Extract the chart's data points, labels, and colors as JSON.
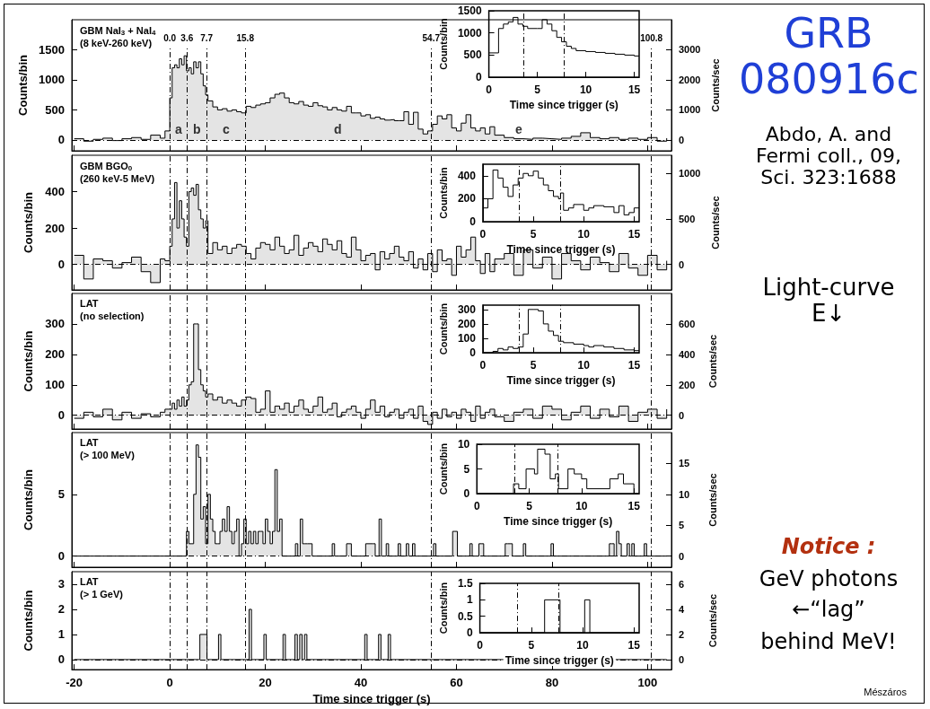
{
  "chart_data": [
    {
      "type": "step",
      "title": "GBM NaI$_{3}$ + NaI$_{4}$",
      "subtitle": "(8 keV-260 keV)",
      "ylabel": "Counts/bin",
      "y2label": "Counts/sec",
      "color": "#000000",
      "x": [
        -20,
        -18,
        -16,
        -14,
        -12,
        -10,
        -8,
        -6,
        -4,
        -2,
        -1,
        0,
        0.5,
        1,
        1.5,
        2,
        2.5,
        3,
        3.5,
        4,
        4.5,
        5,
        5.5,
        6,
        6.5,
        7,
        7.5,
        8,
        9,
        10,
        11,
        12,
        13,
        14,
        15,
        16,
        17,
        18,
        19,
        20,
        21,
        22,
        23,
        24,
        25,
        26,
        27,
        28,
        29,
        30,
        31,
        32,
        33,
        34,
        35,
        36,
        37,
        38,
        39,
        40,
        41,
        42,
        43,
        44,
        45,
        46,
        47,
        48,
        49,
        50,
        51,
        52,
        53,
        54,
        55,
        56,
        57,
        58,
        59,
        60,
        61,
        62,
        63,
        64,
        65,
        66,
        67,
        68,
        70,
        72,
        74,
        76,
        78,
        80,
        82,
        84,
        86,
        88,
        90,
        92,
        94,
        96,
        98,
        100,
        102,
        104
      ],
      "values": [
        20,
        -20,
        10,
        30,
        -10,
        20,
        40,
        10,
        80,
        30,
        150,
        700,
        1200,
        1250,
        1200,
        1350,
        1250,
        1400,
        1150,
        1200,
        1100,
        1300,
        1200,
        1300,
        1100,
        900,
        750,
        650,
        550,
        500,
        520,
        480,
        500,
        470,
        450,
        560,
        540,
        580,
        600,
        620,
        700,
        760,
        780,
        700,
        620,
        600,
        640,
        580,
        560,
        620,
        570,
        550,
        500,
        540,
        500,
        480,
        560,
        450,
        450,
        400,
        420,
        360,
        380,
        350,
        330,
        340,
        320,
        320,
        470,
        260,
        460,
        180,
        100,
        150,
        260,
        400,
        350,
        420,
        200,
        150,
        280,
        420,
        200,
        150,
        200,
        100,
        220,
        80,
        40,
        20,
        10,
        30,
        20,
        10,
        30,
        60,
        120,
        40,
        20,
        40,
        10,
        30,
        10,
        40,
        -20,
        30
      ],
      "xlim": [
        -20.5,
        105
      ],
      "xticks": [
        -20,
        0,
        20,
        40,
        60,
        80,
        100
      ],
      "ylim": [
        -180,
        2000
      ],
      "yticks": [
        0,
        500,
        1000,
        1500
      ],
      "y2lim": [
        -360,
        4000
      ],
      "y2ticks": [
        0,
        1000,
        2000,
        3000
      ],
      "tick_labels": "y",
      "ref_lines": [
        {
          "axis": "x",
          "value": 0,
          "label": "0.0",
          "line_style": "dashed"
        },
        {
          "axis": "x",
          "value": 3.6,
          "label": "3.6",
          "line_style": "dashed"
        },
        {
          "axis": "x",
          "value": 7.7,
          "label": "7.7",
          "line_style": "dashed"
        },
        {
          "axis": "x",
          "value": 15.8,
          "label": "15.8",
          "line_style": "dashed"
        },
        {
          "axis": "x",
          "value": 54.7,
          "label": "54.7",
          "line_style": "dashed"
        },
        {
          "axis": "x",
          "value": 100.8,
          "label": "100.8",
          "line_style": "dashed"
        },
        {
          "axis": "y",
          "value": 0,
          "line_style": "dashed"
        }
      ],
      "annotations": [
        "a",
        "b",
        "c",
        "d",
        "e"
      ]
    },
    {
      "type": "step",
      "xlabel": "Time since trigger (s)",
      "ylabel": "Counts/bin",
      "color": "#000000",
      "x": [
        0,
        1,
        1.5,
        2,
        2.5,
        3,
        3.5,
        4,
        5,
        5.5,
        6,
        6.5,
        7,
        7.5,
        8,
        8.5,
        9,
        10,
        11,
        12,
        13,
        14,
        15,
        15.5
      ],
      "values": [
        550,
        1100,
        1200,
        1250,
        1350,
        1200,
        1150,
        1100,
        1100,
        1300,
        1200,
        1050,
        900,
        800,
        700,
        650,
        600,
        580,
        560,
        540,
        520,
        500,
        480,
        480
      ],
      "xlim": [
        0,
        15.5
      ],
      "xticks": [
        0,
        5,
        10,
        15
      ],
      "ylim": [
        0,
        1500
      ],
      "yticks": [
        0,
        500,
        1000,
        1500
      ],
      "ref_lines": [
        {
          "axis": "x",
          "value": 3.6,
          "line_style": "dashed"
        },
        {
          "axis": "x",
          "value": 7.7,
          "line_style": "dashed"
        }
      ]
    },
    {
      "type": "step",
      "title": "GBM BGO$_{0}$",
      "subtitle": "(260 keV-5 MeV)",
      "ylabel": "Counts/bin",
      "y2label": "Counts/sec",
      "color": "#000000",
      "x": [
        -20,
        -18,
        -16,
        -14,
        -12,
        -10,
        -8,
        -6,
        -4,
        -2,
        -1,
        0,
        0.5,
        1,
        1.5,
        2,
        2.5,
        3,
        3.5,
        4,
        4.5,
        5,
        5.5,
        6,
        6.5,
        7,
        7.5,
        8,
        9,
        10,
        11,
        12,
        13,
        14,
        15,
        16,
        17,
        18,
        19,
        20,
        21,
        22,
        23,
        24,
        25,
        26,
        27,
        28,
        29,
        30,
        31,
        32,
        33,
        34,
        35,
        36,
        37,
        38,
        39,
        40,
        41,
        42,
        43,
        44,
        45,
        46,
        47,
        48,
        49,
        50,
        51,
        52,
        53,
        54,
        55,
        56,
        57,
        58,
        59,
        60,
        61,
        62,
        63,
        64,
        65,
        66,
        67,
        68,
        70,
        72,
        74,
        76,
        78,
        80,
        82,
        84,
        86,
        88,
        90,
        92,
        94,
        96,
        98,
        100,
        102,
        104
      ],
      "values": [
        50,
        -80,
        30,
        20,
        -20,
        10,
        40,
        -40,
        -100,
        30,
        20,
        100,
        250,
        450,
        200,
        350,
        250,
        150,
        100,
        400,
        420,
        380,
        440,
        300,
        250,
        200,
        240,
        60,
        120,
        80,
        100,
        60,
        90,
        110,
        100,
        60,
        30,
        90,
        120,
        110,
        80,
        150,
        100,
        60,
        80,
        160,
        50,
        90,
        120,
        100,
        70,
        140,
        110,
        80,
        130,
        60,
        40,
        150,
        80,
        20,
        50,
        60,
        -30,
        70,
        30,
        60,
        100,
        40,
        20,
        70,
        -20,
        30,
        -30,
        60,
        -40,
        80,
        20,
        30,
        -60,
        100,
        40,
        80,
        150,
        20,
        -50,
        60,
        -40,
        30,
        60,
        -60,
        80,
        -20,
        40,
        -80,
        60,
        20,
        -30,
        40,
        10,
        -40,
        60,
        -20,
        -60,
        50,
        -30,
        20
      ],
      "xlim": [
        -20.5,
        105
      ],
      "xticks": [
        -20,
        0,
        20,
        40,
        60,
        80,
        100
      ],
      "ylim": [
        -140,
        600
      ],
      "yticks": [
        0,
        200,
        400
      ],
      "y2lim": [
        -280,
        1200
      ],
      "y2ticks": [
        0,
        500,
        1000
      ],
      "tick_labels": "y",
      "ref_lines": [
        {
          "axis": "x",
          "value": 0,
          "line_style": "dashed"
        },
        {
          "axis": "x",
          "value": 3.6,
          "line_style": "dashed"
        },
        {
          "axis": "x",
          "value": 7.7,
          "line_style": "dashed"
        },
        {
          "axis": "x",
          "value": 15.8,
          "line_style": "dashed"
        },
        {
          "axis": "x",
          "value": 54.7,
          "line_style": "dashed"
        },
        {
          "axis": "x",
          "value": 100.8,
          "line_style": "dashed"
        },
        {
          "axis": "y",
          "value": 0,
          "line_style": "dashed"
        }
      ]
    },
    {
      "type": "step",
      "xlabel": "Time since trigger (s)",
      "ylabel": "Counts/bin",
      "color": "#000000",
      "x": [
        0,
        0.5,
        1,
        1.5,
        2,
        2.5,
        3,
        3.5,
        4,
        4.5,
        5,
        5.5,
        6,
        6.5,
        7,
        7.5,
        7.7,
        8,
        8.5,
        9,
        10,
        10.5,
        11,
        12,
        13,
        13.5,
        14,
        14.5,
        15,
        15.5
      ],
      "values": [
        120,
        200,
        450,
        380,
        300,
        220,
        320,
        380,
        420,
        400,
        440,
        380,
        320,
        270,
        220,
        200,
        250,
        100,
        120,
        150,
        100,
        120,
        140,
        130,
        80,
        140,
        60,
        80,
        120,
        120
      ],
      "xlim": [
        0,
        15.5
      ],
      "xticks": [
        0,
        5,
        10,
        15
      ],
      "ylim": [
        0,
        500
      ],
      "yticks": [
        0,
        200,
        400
      ],
      "ref_lines": [
        {
          "axis": "x",
          "value": 3.6,
          "line_style": "dashed"
        },
        {
          "axis": "x",
          "value": 7.7,
          "line_style": "dashed"
        }
      ]
    },
    {
      "type": "step",
      "title": "LAT",
      "subtitle": "(no selection)",
      "ylabel": "Counts/bin",
      "y2label": "Counts/sec",
      "color": "#000000",
      "x": [
        -20,
        -18,
        -16,
        -14,
        -12,
        -10,
        -8,
        -6,
        -4,
        -2,
        -1,
        0,
        0.5,
        1,
        1.5,
        2,
        2.5,
        3,
        3.5,
        4,
        4.5,
        5,
        5.5,
        6,
        6.5,
        7,
        7.5,
        8,
        9,
        10,
        11,
        12,
        13,
        14,
        15,
        16,
        17,
        18,
        19,
        20,
        21,
        22,
        23,
        24,
        25,
        26,
        27,
        28,
        29,
        30,
        31,
        32,
        33,
        34,
        35,
        36,
        37,
        38,
        39,
        40,
        41,
        42,
        43,
        44,
        45,
        46,
        47,
        48,
        49,
        50,
        51,
        52,
        53,
        54,
        55,
        56,
        57,
        58,
        59,
        60,
        61,
        62,
        63,
        64,
        65,
        66,
        67,
        68,
        70,
        72,
        74,
        76,
        78,
        80,
        82,
        84,
        86,
        88,
        90,
        92,
        94,
        96,
        98,
        100,
        102,
        104
      ],
      "values": [
        -10,
        10,
        -5,
        20,
        -15,
        10,
        -10,
        5,
        -5,
        10,
        20,
        20,
        40,
        20,
        50,
        30,
        60,
        30,
        50,
        100,
        110,
        300,
        300,
        150,
        100,
        80,
        60,
        70,
        50,
        60,
        40,
        50,
        40,
        30,
        50,
        60,
        55,
        10,
        20,
        80,
        10,
        30,
        20,
        40,
        10,
        30,
        50,
        20,
        10,
        30,
        60,
        10,
        20,
        40,
        -5,
        10,
        20,
        30,
        10,
        -10,
        20,
        50,
        10,
        30,
        -5,
        10,
        20,
        -10,
        10,
        20,
        -10,
        30,
        -20,
        -30,
        10,
        -10,
        20,
        -5,
        10,
        -10,
        20,
        10,
        -20,
        30,
        -10,
        10,
        20,
        -5,
        -20,
        10,
        20,
        -10,
        30,
        20,
        -15,
        10,
        30,
        -10,
        20,
        -5,
        30,
        -20,
        10,
        20,
        -10,
        20
      ],
      "xlim": [
        -20.5,
        105
      ],
      "xticks": [
        -20,
        0,
        20,
        40,
        60,
        80,
        100
      ],
      "ylim": [
        -45,
        400
      ],
      "yticks": [
        0,
        100,
        200,
        300
      ],
      "y2lim": [
        -90,
        800
      ],
      "y2ticks": [
        0,
        200,
        400,
        600
      ],
      "tick_labels": "y",
      "ref_lines": [
        {
          "axis": "x",
          "value": 0,
          "line_style": "dashed"
        },
        {
          "axis": "x",
          "value": 3.6,
          "line_style": "dashed"
        },
        {
          "axis": "x",
          "value": 7.7,
          "line_style": "dashed"
        },
        {
          "axis": "x",
          "value": 15.8,
          "line_style": "dashed"
        },
        {
          "axis": "x",
          "value": 54.7,
          "line_style": "dashed"
        },
        {
          "axis": "x",
          "value": 100.8,
          "line_style": "dashed"
        },
        {
          "axis": "y",
          "value": 0,
          "line_style": "dashed"
        }
      ]
    },
    {
      "type": "step",
      "xlabel": "Time since trigger (s)",
      "ylabel": "Counts/bin",
      "color": "#000000",
      "x": [
        0,
        1,
        1.5,
        2,
        2.5,
        3,
        3.5,
        4,
        4.5,
        5,
        5.5,
        6,
        6.5,
        7,
        7.5,
        8,
        9,
        10,
        10.5,
        11,
        12,
        13,
        14,
        15,
        15.5
      ],
      "values": [
        0,
        10,
        30,
        20,
        40,
        30,
        40,
        130,
        300,
        300,
        290,
        200,
        150,
        120,
        80,
        70,
        60,
        50,
        40,
        50,
        40,
        30,
        20,
        15,
        15
      ],
      "xlim": [
        0,
        15.5
      ],
      "xticks": [
        0,
        5,
        10,
        15
      ],
      "ylim": [
        0,
        330
      ],
      "yticks": [
        0,
        100,
        200,
        300
      ],
      "ref_lines": [
        {
          "axis": "x",
          "value": 3.6,
          "line_style": "dashed"
        },
        {
          "axis": "x",
          "value": 7.7,
          "line_style": "dashed"
        }
      ]
    },
    {
      "type": "step",
      "title": "LAT",
      "subtitle": "(> 100 MeV)",
      "ylabel": "Counts/bin",
      "y2label": "Counts/sec",
      "color": "#000000",
      "x": [
        -20,
        3.5,
        4,
        4.5,
        5,
        5.5,
        6,
        6.5,
        7,
        7.5,
        8,
        8.5,
        9,
        9.5,
        10,
        10.5,
        11,
        11.5,
        12,
        12.5,
        13,
        13.5,
        14,
        14.5,
        15,
        15.5,
        16,
        16.5,
        17,
        17.5,
        18,
        18.5,
        19,
        19.5,
        20,
        20.5,
        21,
        21.5,
        22,
        22.5,
        23,
        23.5,
        26.3,
        26.8,
        27.3,
        27.8,
        28.3,
        28.8,
        29.3,
        29.8,
        34,
        34.5,
        37,
        38,
        41,
        41.5,
        42.5,
        43,
        43.8,
        44.3,
        45.3,
        45.8,
        47.8,
        48.3,
        49.5,
        50,
        50.8,
        51.3,
        55.2,
        55.7,
        59.2,
        59.7,
        60.2,
        62.8,
        63.3,
        64.7,
        65.2,
        65.7,
        70.2,
        70.7,
        71.2,
        71.7,
        74,
        74.5,
        79.8,
        80.3,
        92,
        92.5,
        93,
        93.5,
        94,
        94.5,
        95.7,
        96.2,
        96.7,
        97.2,
        99.3,
        99.8,
        104
      ],
      "values": [
        0,
        2,
        1,
        1,
        5,
        9,
        8,
        3,
        4,
        1,
        5,
        3,
        2,
        1,
        1,
        2,
        3,
        2,
        4,
        2,
        1,
        2,
        3,
        0,
        1,
        3,
        1,
        2,
        1,
        2,
        1,
        2,
        2,
        1,
        3,
        2,
        1,
        2,
        7,
        2,
        3,
        0,
        1,
        0,
        3,
        1,
        1,
        1,
        1,
        0,
        1,
        0,
        1,
        0,
        1,
        1,
        1,
        0,
        3,
        0,
        1,
        0,
        1,
        0,
        1,
        0,
        1,
        0,
        1,
        0,
        2,
        2,
        0,
        1,
        0,
        1,
        1,
        0,
        1,
        1,
        1,
        0,
        1,
        0,
        1,
        0,
        1,
        1,
        0,
        2,
        1,
        0,
        1,
        0,
        1,
        0,
        1,
        0,
        0
      ],
      "xlim": [
        -20.5,
        105
      ],
      "xticks": [
        -20,
        0,
        20,
        40,
        60,
        80,
        100
      ],
      "ylim": [
        -0.9,
        10
      ],
      "yticks": [
        0,
        5
      ],
      "y2lim": [
        -1.8,
        20
      ],
      "y2ticks": [
        0,
        5,
        10,
        15
      ],
      "tick_labels": "y",
      "ref_lines": [
        {
          "axis": "x",
          "value": 0,
          "line_style": "dashed"
        },
        {
          "axis": "x",
          "value": 3.6,
          "line_style": "dashed"
        },
        {
          "axis": "x",
          "value": 7.7,
          "line_style": "dashed"
        },
        {
          "axis": "x",
          "value": 15.8,
          "line_style": "dashed"
        },
        {
          "axis": "x",
          "value": 54.7,
          "line_style": "dashed"
        },
        {
          "axis": "x",
          "value": 100.8,
          "line_style": "dashed"
        },
        {
          "axis": "y",
          "value": 0,
          "line_style": "dashed"
        }
      ]
    },
    {
      "type": "step",
      "xlabel": "Time since trigger (s)",
      "ylabel": "Counts/bin",
      "color": "#000000",
      "x": [
        0,
        3.5,
        4,
        4.7,
        5.5,
        5.8,
        6.5,
        7,
        7.5,
        7.8,
        8.7,
        9.3,
        10,
        10.5,
        12.7,
        13.5,
        14,
        15,
        15.5
      ],
      "values": [
        0,
        2,
        1,
        5,
        4,
        9,
        8,
        3,
        4,
        1,
        5,
        4,
        3,
        1,
        3,
        4,
        2,
        0,
        0
      ],
      "xlim": [
        0,
        15.5
      ],
      "xticks": [
        0,
        5,
        10,
        15
      ],
      "ylim": [
        0,
        10
      ],
      "yticks": [
        0,
        5,
        10
      ],
      "ref_lines": [
        {
          "axis": "x",
          "value": 3.6,
          "line_style": "dashed"
        },
        {
          "axis": "x",
          "value": 7.7,
          "line_style": "dashed"
        }
      ]
    },
    {
      "type": "step",
      "title": "LAT",
      "subtitle": "(> 1 GeV)",
      "xlabel": "Time since trigger (s)",
      "ylabel": "Counts/bin",
      "y2label": "Counts/sec",
      "color": "#000000",
      "x": [
        -20,
        6.3,
        7.8,
        10.2,
        10.7,
        16.6,
        17.1,
        19.7,
        20.2,
        23.7,
        24.2,
        26.2,
        26.7,
        27.2,
        27.7,
        28.2,
        28.7,
        40.8,
        41.3,
        43.7,
        44.2,
        45.7,
        46.2,
        104
      ],
      "values": [
        0,
        1,
        0,
        1,
        0,
        2,
        0,
        1,
        0,
        1,
        0,
        1,
        0,
        1,
        0,
        1,
        0,
        1,
        0,
        1,
        0,
        1,
        0,
        0
      ],
      "xlim": [
        -20.5,
        105
      ],
      "xticks": [
        -20,
        0,
        20,
        40,
        60,
        80,
        100
      ],
      "ylim": [
        -0.4,
        3.5
      ],
      "yticks": [
        0,
        1,
        2,
        3
      ],
      "y2lim": [
        -0.8,
        7
      ],
      "y2ticks": [
        0,
        2,
        4,
        6
      ],
      "ref_lines": [
        {
          "axis": "x",
          "value": 0,
          "line_style": "dashed"
        },
        {
          "axis": "x",
          "value": 3.6,
          "line_style": "dashed"
        },
        {
          "axis": "x",
          "value": 7.7,
          "line_style": "dashed"
        },
        {
          "axis": "x",
          "value": 15.8,
          "line_style": "dashed"
        },
        {
          "axis": "x",
          "value": 54.7,
          "line_style": "dashed"
        },
        {
          "axis": "x",
          "value": 100.8,
          "line_style": "dashed"
        },
        {
          "axis": "y",
          "value": 0,
          "line_style": "dashed"
        }
      ]
    },
    {
      "type": "step",
      "xlabel": "Time since trigger (s)",
      "ylabel": "Counts/bin",
      "color": "#000000",
      "x": [
        0,
        6.3,
        7.8,
        10.2,
        10.7,
        15.5
      ],
      "values": [
        0,
        1,
        0,
        1,
        0,
        0
      ],
      "xlim": [
        0,
        15.5
      ],
      "xticks": [
        0,
        5,
        10,
        15
      ],
      "ylim": [
        0,
        1.5
      ],
      "yticks": [
        0,
        0.5,
        1,
        1.5
      ],
      "ref_lines": [
        {
          "axis": "x",
          "value": 3.6,
          "line_style": "dashed"
        },
        {
          "axis": "x",
          "value": 7.7,
          "line_style": "dashed"
        }
      ]
    },
    {
      "type": "other",
      "annotations": [
        "GRB 080916c",
        "Abdo, A. and Fermi coll., 09, Sci. 323:1688",
        "Light-curve E↓",
        "Notice :",
        "GeV photons",
        "←“lag”",
        "behind MeV!",
        "Mészáros"
      ]
    }
  ]
}
